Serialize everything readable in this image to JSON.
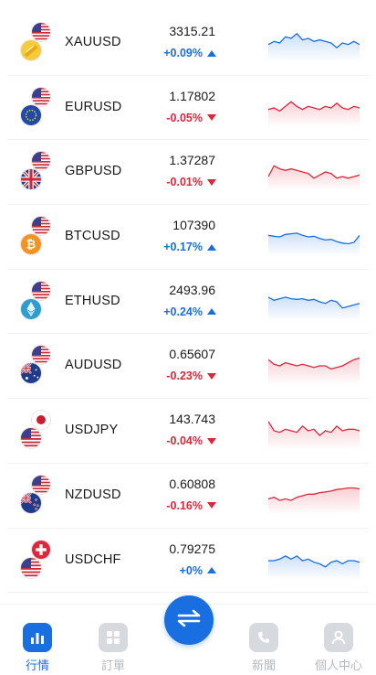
{
  "colors": {
    "accent": "#1a6fe0",
    "up": "#1a6fe0",
    "down": "#e0263a",
    "inactive": "#b4b8bf"
  },
  "quotes": [
    {
      "symbol": "XAUUSD",
      "price": "3315.21",
      "change": "+0.09%",
      "direction": "up",
      "flag_top": "us-flag-icon",
      "flag_bottom": "gold-icon"
    },
    {
      "symbol": "EURUSD",
      "price": "1.17802",
      "change": "-0.05%",
      "direction": "down",
      "flag_top": "us-flag-icon",
      "flag_bottom": "eu-flag-icon"
    },
    {
      "symbol": "GBPUSD",
      "price": "1.37287",
      "change": "-0.01%",
      "direction": "down",
      "flag_top": "us-flag-icon",
      "flag_bottom": "uk-flag-icon"
    },
    {
      "symbol": "BTCUSD",
      "price": "107390",
      "change": "+0.17%",
      "direction": "up",
      "flag_top": "us-flag-icon",
      "flag_bottom": "bitcoin-icon"
    },
    {
      "symbol": "ETHUSD",
      "price": "2493.96",
      "change": "+0.24%",
      "direction": "up",
      "flag_top": "us-flag-icon",
      "flag_bottom": "ethereum-icon"
    },
    {
      "symbol": "AUDUSD",
      "price": "0.65607",
      "change": "-0.23%",
      "direction": "down",
      "flag_top": "us-flag-icon",
      "flag_bottom": "au-flag-icon"
    },
    {
      "symbol": "USDJPY",
      "price": "143.743",
      "change": "-0.04%",
      "direction": "down",
      "flag_top": "jp-flag-icon",
      "flag_bottom": "us-flag-icon"
    },
    {
      "symbol": "NZDUSD",
      "price": "0.60808",
      "change": "-0.16%",
      "direction": "down",
      "flag_top": "us-flag-icon",
      "flag_bottom": "nz-flag-icon"
    },
    {
      "symbol": "USDCHF",
      "price": "0.79275",
      "change": "+0%",
      "direction": "up",
      "flag_top": "ch-flag-icon",
      "flag_bottom": "us-flag-icon"
    }
  ],
  "nav": {
    "tabs": [
      {
        "label": "行情",
        "icon": "bar-chart-icon",
        "active": true
      },
      {
        "label": "訂單",
        "icon": "grid-icon",
        "active": false
      },
      {
        "label": "新聞",
        "icon": "phone-icon",
        "active": false
      },
      {
        "label": "個人中心",
        "icon": "user-icon",
        "active": false
      }
    ],
    "center_icon": "swap-icon"
  }
}
